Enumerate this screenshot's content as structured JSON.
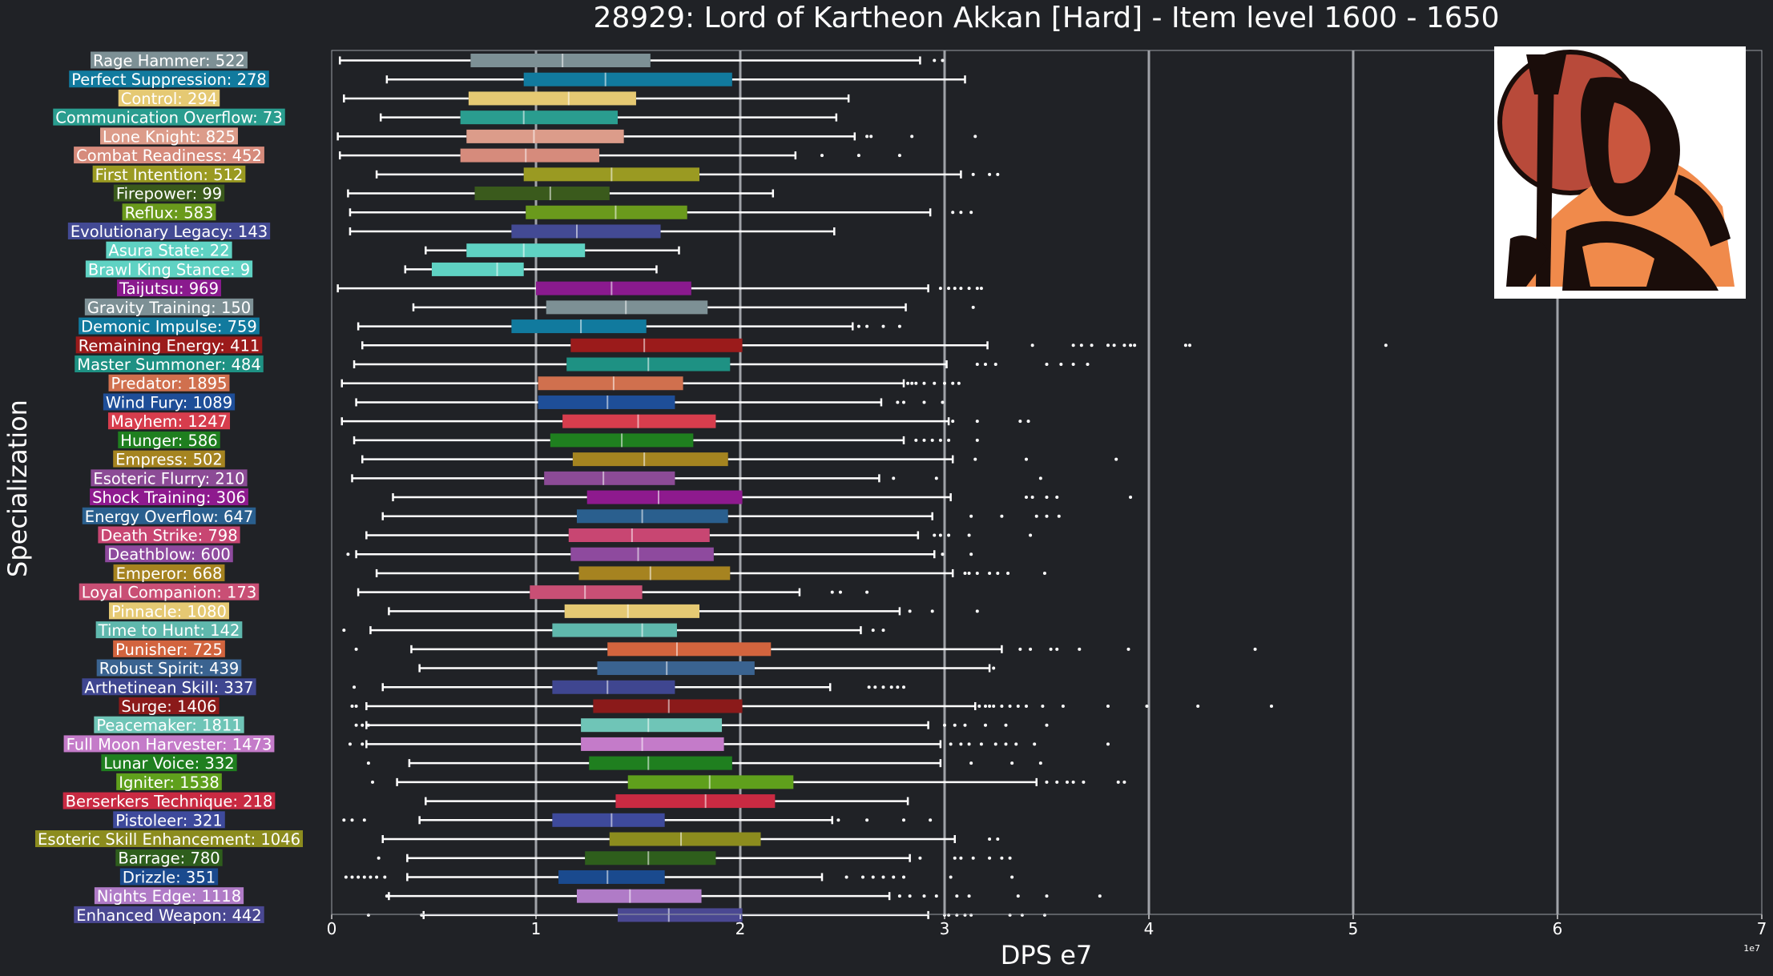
{
  "chart_data": {
    "type": "box",
    "title": "28929: Lord of Kartheon Akkan [Hard] - Item level 1600 - 1650",
    "xlabel": "DPS e7",
    "ylabel": "Specialization",
    "x_offset_label": "1e7",
    "xlim": [
      0,
      7
    ],
    "xticks": [
      "0",
      "1",
      "2",
      "3",
      "4",
      "5",
      "6",
      "7"
    ],
    "grid_x": true,
    "image_placement": "top-right",
    "series": [
      {
        "label": "Rage Hammer: 522",
        "color": "#7d9095",
        "whislo": 0.04,
        "q1": 0.68,
        "med": 1.13,
        "q3": 1.56,
        "whishi": 2.88,
        "fliers": [
          2.95,
          2.99
        ]
      },
      {
        "label": "Perfect Suppression: 278",
        "color": "#117a9e",
        "whislo": 0.27,
        "q1": 0.94,
        "med": 1.34,
        "q3": 1.96,
        "whishi": 3.1,
        "fliers": []
      },
      {
        "label": "Control: 294",
        "color": "#e5c973",
        "whislo": 0.06,
        "q1": 0.67,
        "med": 1.16,
        "q3": 1.49,
        "whishi": 2.53,
        "fliers": []
      },
      {
        "label": "Communication Overflow: 73",
        "color": "#2a9d8f",
        "whislo": 0.24,
        "q1": 0.63,
        "med": 0.94,
        "q3": 1.4,
        "whishi": 2.47,
        "fliers": []
      },
      {
        "label": "Lone Knight: 825",
        "color": "#dc9c8a",
        "whislo": 0.03,
        "q1": 0.66,
        "med": 0.99,
        "q3": 1.43,
        "whishi": 2.56,
        "fliers": [
          2.62,
          2.64,
          2.84,
          3.15
        ]
      },
      {
        "label": "Combat Readiness: 452",
        "color": "#d68b7c",
        "whislo": 0.04,
        "q1": 0.63,
        "med": 0.95,
        "q3": 1.31,
        "whishi": 2.27,
        "fliers": [
          2.4,
          2.58,
          2.78
        ]
      },
      {
        "label": "First Intention: 512",
        "color": "#9a9a22",
        "whislo": 0.22,
        "q1": 0.94,
        "med": 1.37,
        "q3": 1.8,
        "whishi": 3.08,
        "fliers": [
          3.14,
          3.22,
          3.26
        ]
      },
      {
        "label": "Firepower: 99",
        "color": "#3a5a1c",
        "whislo": 0.08,
        "q1": 0.7,
        "med": 1.07,
        "q3": 1.36,
        "whishi": 2.16,
        "fliers": []
      },
      {
        "label": "Reflux: 583",
        "color": "#6a9a1c",
        "whislo": 0.09,
        "q1": 0.95,
        "med": 1.39,
        "q3": 1.74,
        "whishi": 2.93,
        "fliers": [
          3.04,
          3.08,
          3.13
        ]
      },
      {
        "label": "Evolutionary Legacy: 143",
        "color": "#434a94",
        "whislo": 0.09,
        "q1": 0.88,
        "med": 1.2,
        "q3": 1.61,
        "whishi": 2.46,
        "fliers": []
      },
      {
        "label": "Asura State: 22",
        "color": "#5fd2c3",
        "whislo": 0.46,
        "q1": 0.66,
        "med": 0.94,
        "q3": 1.24,
        "whishi": 1.7,
        "fliers": []
      },
      {
        "label": "Brawl King Stance: 9",
        "color": "#5fd2c3",
        "whislo": 0.36,
        "q1": 0.49,
        "med": 0.81,
        "q3": 0.94,
        "whishi": 1.59,
        "fliers": []
      },
      {
        "label": "Taijutsu: 969",
        "color": "#8a1a8e",
        "whislo": 0.03,
        "q1": 1.0,
        "med": 1.37,
        "q3": 1.76,
        "whishi": 2.92,
        "fliers": [
          2.98,
          3.02,
          3.05,
          3.08,
          3.12,
          3.16,
          3.18
        ]
      },
      {
        "label": "Gravity Training: 150",
        "color": "#7d9095",
        "whislo": 0.4,
        "q1": 1.05,
        "med": 1.44,
        "q3": 1.84,
        "whishi": 2.81,
        "fliers": [
          3.14
        ]
      },
      {
        "label": "Demonic Impulse: 759",
        "color": "#117a9e",
        "whislo": 0.13,
        "q1": 0.88,
        "med": 1.22,
        "q3": 1.54,
        "whishi": 2.55,
        "fliers": [
          2.58,
          2.62,
          2.7,
          2.78
        ]
      },
      {
        "label": "Remaining Energy: 411",
        "color": "#9b1b1b",
        "whislo": 0.15,
        "q1": 1.17,
        "med": 1.53,
        "q3": 2.01,
        "whishi": 3.21,
        "fliers": [
          3.43,
          3.63,
          3.67,
          3.72,
          3.8,
          3.83,
          3.88,
          3.91,
          3.93,
          4.18,
          4.2,
          5.16
        ]
      },
      {
        "label": "Master Summoner: 484",
        "color": "#1e9183",
        "whislo": 0.11,
        "q1": 1.15,
        "med": 1.55,
        "q3": 1.95,
        "whishi": 3.01,
        "fliers": [
          3.16,
          3.2,
          3.25,
          3.5,
          3.57,
          3.63,
          3.7
        ]
      },
      {
        "label": "Predator: 1895",
        "color": "#d0704e",
        "whislo": 0.05,
        "q1": 1.01,
        "med": 1.38,
        "q3": 1.72,
        "whishi": 2.8,
        "fliers": [
          2.82,
          2.84,
          2.86,
          2.9,
          2.95,
          3.0,
          3.04,
          3.07
        ]
      },
      {
        "label": "Wind Fury: 1089",
        "color": "#1e4e98",
        "whislo": 0.12,
        "q1": 1.01,
        "med": 1.35,
        "q3": 1.68,
        "whishi": 2.69,
        "fliers": [
          2.77,
          2.8,
          2.9,
          2.99
        ]
      },
      {
        "label": "Mayhem: 1247",
        "color": "#d73d4d",
        "whislo": 0.05,
        "q1": 1.13,
        "med": 1.5,
        "q3": 1.88,
        "whishi": 3.02,
        "fliers": [
          3.04,
          3.16,
          3.37,
          3.41
        ]
      },
      {
        "label": "Hunger: 586",
        "color": "#1f7f1f",
        "whislo": 0.11,
        "q1": 1.07,
        "med": 1.42,
        "q3": 1.77,
        "whishi": 2.8,
        "fliers": [
          2.86,
          2.9,
          2.94,
          2.98,
          3.02,
          3.16
        ]
      },
      {
        "label": "Empress: 502",
        "color": "#a58420",
        "whislo": 0.15,
        "q1": 1.18,
        "med": 1.53,
        "q3": 1.94,
        "whishi": 3.04,
        "fliers": [
          3.15,
          3.4,
          3.84
        ]
      },
      {
        "label": "Esoteric Flurry: 210",
        "color": "#8c4b96",
        "whislo": 0.1,
        "q1": 1.04,
        "med": 1.33,
        "q3": 1.68,
        "whishi": 2.68,
        "fliers": [
          2.75,
          2.96,
          3.47
        ]
      },
      {
        "label": "Shock Training: 306",
        "color": "#8e1a8e",
        "whislo": 0.3,
        "q1": 1.25,
        "med": 1.6,
        "q3": 2.01,
        "whishi": 3.03,
        "fliers": [
          3.4,
          3.43,
          3.5,
          3.55,
          3.91
        ]
      },
      {
        "label": "Energy Overflow: 647",
        "color": "#2a5f8e",
        "whislo": 0.25,
        "q1": 1.2,
        "med": 1.52,
        "q3": 1.94,
        "whishi": 2.94,
        "fliers": [
          3.13,
          3.28,
          3.45,
          3.5,
          3.56
        ]
      },
      {
        "label": "Death Strike: 798",
        "color": "#c84672",
        "whislo": 0.17,
        "q1": 1.16,
        "med": 1.47,
        "q3": 1.85,
        "whishi": 2.87,
        "fliers": [
          2.95,
          2.98,
          3.02,
          3.12,
          3.42
        ]
      },
      {
        "label": "Deathblow: 600",
        "color": "#8e4a9e",
        "whislo": 0.12,
        "q1": 1.17,
        "med": 1.5,
        "q3": 1.87,
        "whishi": 2.95,
        "fliers": [
          0.08,
          2.99,
          3.13
        ]
      },
      {
        "label": "Emperor: 668",
        "color": "#a68320",
        "whislo": 0.22,
        "q1": 1.21,
        "med": 1.56,
        "q3": 1.95,
        "whishi": 3.04,
        "fliers": [
          3.1,
          3.12,
          3.16,
          3.22,
          3.26,
          3.31,
          3.49
        ]
      },
      {
        "label": "Loyal Companion: 173",
        "color": "#c94f75",
        "whislo": 0.13,
        "q1": 0.97,
        "med": 1.24,
        "q3": 1.52,
        "whishi": 2.29,
        "fliers": [
          2.45,
          2.49,
          2.62
        ]
      },
      {
        "label": "Pinnacle: 1080",
        "color": "#e5c973",
        "whislo": 0.28,
        "q1": 1.14,
        "med": 1.45,
        "q3": 1.8,
        "whishi": 2.78,
        "fliers": [
          2.83,
          2.94,
          3.16
        ]
      },
      {
        "label": "Time to Hunt: 142",
        "color": "#5fb8ad",
        "whislo": 0.19,
        "q1": 1.08,
        "med": 1.52,
        "q3": 1.69,
        "whishi": 2.59,
        "fliers": [
          0.06,
          2.65,
          2.7
        ]
      },
      {
        "label": "Punisher: 725",
        "color": "#d2643e",
        "whislo": 0.39,
        "q1": 1.35,
        "med": 1.69,
        "q3": 2.15,
        "whishi": 3.28,
        "fliers": [
          0.12,
          3.37,
          3.42,
          3.52,
          3.55,
          3.66,
          3.9,
          4.52
        ]
      },
      {
        "label": "Robust Spirit: 439",
        "color": "#3a6390",
        "whislo": 0.43,
        "q1": 1.3,
        "med": 1.64,
        "q3": 2.07,
        "whishi": 3.22,
        "fliers": [
          3.24
        ]
      },
      {
        "label": "Arthetinean Skill: 337",
        "color": "#3f4690",
        "whislo": 0.25,
        "q1": 1.08,
        "med": 1.35,
        "q3": 1.68,
        "whishi": 2.44,
        "fliers": [
          0.11,
          2.63,
          2.66,
          2.7,
          2.74,
          2.77,
          2.8
        ]
      },
      {
        "label": "Surge: 1406",
        "color": "#8b1a1a",
        "whislo": 0.17,
        "q1": 1.28,
        "med": 1.65,
        "q3": 2.01,
        "whishi": 3.15,
        "fliers": [
          0.1,
          0.12,
          3.17,
          3.2,
          3.22,
          3.24,
          3.28,
          3.32,
          3.36,
          3.4,
          3.48,
          3.58,
          3.8,
          3.99,
          4.24,
          4.6
        ]
      },
      {
        "label": "Peacemaker: 1811",
        "color": "#6fc5b7",
        "whislo": 0.17,
        "q1": 1.22,
        "med": 1.55,
        "q3": 1.91,
        "whishi": 2.92,
        "fliers": [
          0.12,
          0.15,
          0.18,
          3.0,
          3.05,
          3.1,
          3.2,
          3.3,
          3.5
        ]
      },
      {
        "label": "Full Moon Harvester: 1473",
        "color": "#c47bc9",
        "whislo": 0.17,
        "q1": 1.22,
        "med": 1.52,
        "q3": 1.92,
        "whishi": 2.98,
        "fliers": [
          0.09,
          0.15,
          3.03,
          3.08,
          3.12,
          3.18,
          3.25,
          3.3,
          3.35,
          3.44,
          3.8
        ]
      },
      {
        "label": "Lunar Voice: 332",
        "color": "#1f7f1f",
        "whislo": 0.38,
        "q1": 1.26,
        "med": 1.55,
        "q3": 1.96,
        "whishi": 2.98,
        "fliers": [
          0.18,
          3.13,
          3.33,
          3.47
        ]
      },
      {
        "label": "Igniter: 1538",
        "color": "#5fa01c",
        "whislo": 0.32,
        "q1": 1.45,
        "med": 1.85,
        "q3": 2.26,
        "whishi": 3.45,
        "fliers": [
          0.2,
          3.5,
          3.55,
          3.6,
          3.63,
          3.68,
          3.85,
          3.88
        ]
      },
      {
        "label": "Berserkers Technique: 218",
        "color": "#c92a42",
        "whislo": 0.46,
        "q1": 1.39,
        "med": 1.83,
        "q3": 2.17,
        "whishi": 2.82,
        "fliers": []
      },
      {
        "label": "Pistoleer: 321",
        "color": "#3e4a9c",
        "whislo": 0.43,
        "q1": 1.08,
        "med": 1.37,
        "q3": 1.63,
        "whishi": 2.45,
        "fliers": [
          0.06,
          0.1,
          0.16,
          2.48,
          2.62,
          2.8,
          2.93
        ]
      },
      {
        "label": "Esoteric Skill Enhancement: 1046",
        "color": "#8c8c1e",
        "whislo": 0.25,
        "q1": 1.36,
        "med": 1.71,
        "q3": 2.1,
        "whishi": 3.05,
        "fliers": [
          3.22,
          3.26
        ]
      },
      {
        "label": "Barrage: 780",
        "color": "#2e5e1c",
        "whislo": 0.37,
        "q1": 1.24,
        "med": 1.55,
        "q3": 1.88,
        "whishi": 2.83,
        "fliers": [
          0.23,
          2.88,
          3.05,
          3.08,
          3.14,
          3.22,
          3.28,
          3.32
        ]
      },
      {
        "label": "Drizzle: 351",
        "color": "#1a4a8e",
        "whislo": 0.37,
        "q1": 1.11,
        "med": 1.35,
        "q3": 1.63,
        "whishi": 2.4,
        "fliers": [
          0.07,
          0.1,
          0.13,
          0.16,
          0.19,
          0.22,
          0.26,
          2.52,
          2.6,
          2.65,
          2.7,
          2.75,
          2.8,
          3.03,
          3.33
        ]
      },
      {
        "label": "Nights Edge: 1118",
        "color": "#b07bc7",
        "whislo": 0.28,
        "q1": 1.2,
        "med": 1.46,
        "q3": 1.81,
        "whishi": 2.73,
        "fliers": [
          0.27,
          2.78,
          2.83,
          2.9,
          2.96,
          3.06,
          3.12,
          3.36,
          3.5,
          3.76
        ]
      },
      {
        "label": "Enhanced Weapon: 442",
        "color": "#4a4892",
        "whislo": 0.45,
        "q1": 1.4,
        "med": 1.65,
        "q3": 2.01,
        "whishi": 2.92,
        "fliers": [
          0.18,
          0.44,
          3.0,
          3.02,
          3.06,
          3.1,
          3.13,
          3.32,
          3.38,
          3.49
        ]
      }
    ]
  }
}
